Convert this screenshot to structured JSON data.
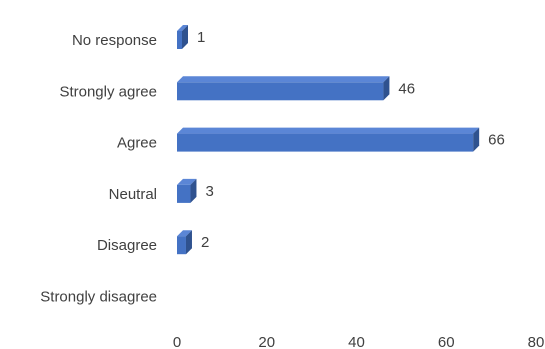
{
  "chart_data": {
    "type": "bar",
    "orientation": "horizontal",
    "style": "3d",
    "title": "",
    "xlabel": "",
    "ylabel": "",
    "categories": [
      "No response",
      "Strongly agree",
      "Agree",
      "Neutral",
      "Disagree",
      "Strongly disagree"
    ],
    "values": [
      1,
      46,
      66,
      3,
      2,
      0
    ],
    "data_labels": [
      "1",
      "46",
      "66",
      "3",
      "2",
      ""
    ],
    "xlim": [
      0,
      80
    ],
    "xticks": [
      0,
      20,
      40,
      60,
      80
    ],
    "tick_labels": [
      "0",
      "20",
      "40",
      "60",
      "80"
    ],
    "grid": false,
    "legend": "none",
    "colors": {
      "bar_front": "#4472C4",
      "bar_top": "#5B86D6",
      "bar_side": "#2F528F",
      "text": "#404040"
    }
  }
}
